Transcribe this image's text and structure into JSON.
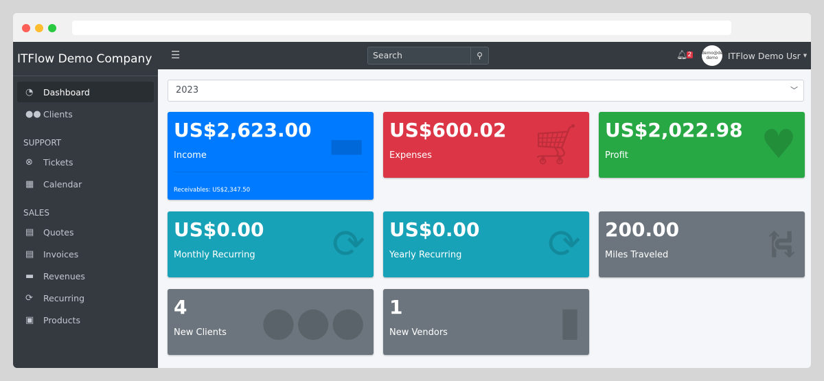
{
  "browser": {
    "dots": [
      "#ff5f57",
      "#febc2e",
      "#28c840"
    ]
  },
  "sidebar": {
    "brand": "ITFlow Demo Company",
    "items": [
      {
        "label": "Dashboard",
        "icon": "tachometer-icon",
        "glyph": "◔",
        "active": true
      },
      {
        "label": "Clients",
        "icon": "users-icon",
        "glyph": "👥"
      }
    ],
    "support_header": "SUPPORT",
    "support": [
      {
        "label": "Tickets",
        "icon": "life-ring-icon",
        "glyph": "⊗"
      },
      {
        "label": "Calendar",
        "icon": "calendar-icon",
        "glyph": "▦"
      }
    ],
    "sales_header": "SALES",
    "sales": [
      {
        "label": "Quotes",
        "icon": "file-icon",
        "glyph": "▤"
      },
      {
        "label": "Invoices",
        "icon": "file-invoice-icon",
        "glyph": "▤"
      },
      {
        "label": "Revenues",
        "icon": "credit-card-icon",
        "glyph": "▬"
      },
      {
        "label": "Recurring",
        "icon": "sync-icon",
        "glyph": "⟳"
      },
      {
        "label": "Products",
        "icon": "box-icon",
        "glyph": "▣"
      }
    ]
  },
  "topnav": {
    "search_placeholder": "Search",
    "notifications": "2",
    "avatar_text": "demo@demo demo",
    "user": "ITFlow Demo Usr"
  },
  "year_select": "2023",
  "cards": [
    {
      "value": "US$2,623.00",
      "label": "Income",
      "footer": "Receivables: US$2,347.50",
      "color": "#007bff",
      "icon": "credit-card-icon"
    },
    {
      "value": "US$600.02",
      "label": "Expenses",
      "color": "#dc3545",
      "icon": "cart-icon"
    },
    {
      "value": "US$2,022.98",
      "label": "Profit",
      "color": "#28a745",
      "icon": "heart-icon"
    },
    {
      "value": "US$0.00",
      "label": "Monthly Recurring",
      "color": "#17a2b8",
      "icon": "sync-icon"
    },
    {
      "value": "US$0.00",
      "label": "Yearly Recurring",
      "color": "#17a2b8",
      "icon": "sync-icon"
    },
    {
      "value": "200.00",
      "label": "Miles Traveled",
      "color": "#6c757d",
      "icon": "route-icon"
    },
    {
      "value": "4",
      "label": "New Clients",
      "color": "#6c757d",
      "icon": "users-icon"
    },
    {
      "value": "1",
      "label": "New Vendors",
      "color": "#6c757d",
      "icon": "building-icon"
    }
  ]
}
